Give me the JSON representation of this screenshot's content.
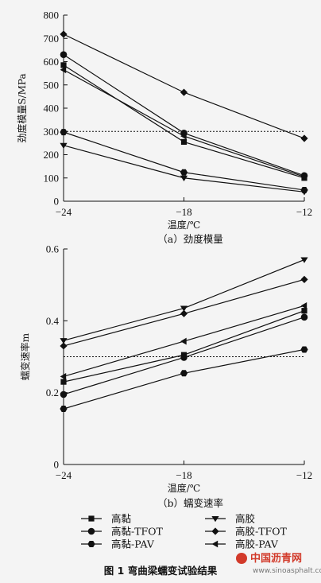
{
  "figure_title": "图 1    弯曲梁蠕变试验结果",
  "watermark": {
    "brand": "中国沥青网",
    "url": "www.sinoasphalt.com"
  },
  "legend": [
    {
      "label": "高黏",
      "marker": "square"
    },
    {
      "label": "高胶",
      "marker": "triangle-down"
    },
    {
      "label": "高黏-TFOT",
      "marker": "circle"
    },
    {
      "label": "高胶-TFOT",
      "marker": "diamond"
    },
    {
      "label": "高黏-PAV",
      "marker": "hexagon"
    },
    {
      "label": "高胶-PAV",
      "marker": "triangle-left"
    }
  ],
  "chart_data": [
    {
      "type": "line",
      "caption": "（a）劲度模量",
      "xlabel": "温度/℃",
      "ylabel": "劲度模量S/MPa",
      "x": [
        -24,
        -18,
        -12
      ],
      "x_ticks": [
        "−24",
        "−18",
        "−12"
      ],
      "xlim": [
        -24,
        -12
      ],
      "ylim": [
        0,
        800
      ],
      "y_ticks": [
        0,
        100,
        200,
        300,
        400,
        500,
        600,
        700,
        800
      ],
      "reference_line": 300,
      "series": [
        {
          "name": "高黏",
          "marker": "square",
          "values": [
            585,
            255,
            100
          ]
        },
        {
          "name": "高胶",
          "marker": "triangle-down",
          "values": [
            240,
            100,
            40
          ]
        },
        {
          "name": "高黏-TFOT",
          "marker": "circle",
          "values": [
            630,
            293,
            110
          ]
        },
        {
          "name": "高胶-TFOT",
          "marker": "diamond",
          "values": [
            718,
            468,
            270
          ]
        },
        {
          "name": "高黏-PAV",
          "marker": "hexagon",
          "values": [
            297,
            124,
            48
          ]
        },
        {
          "name": "高胶-PAV",
          "marker": "triangle-left",
          "values": [
            565,
            280,
            105
          ]
        }
      ]
    },
    {
      "type": "line",
      "caption": "（b）蠕变速率",
      "xlabel": "温度/℃",
      "ylabel": "蠕变速率m",
      "x": [
        -24,
        -18,
        -12
      ],
      "x_ticks": [
        "−24",
        "−18",
        "−12"
      ],
      "xlim": [
        -24,
        -12
      ],
      "ylim": [
        0,
        0.6
      ],
      "y_ticks": [
        "0",
        "0.2",
        "0.4",
        "0.6"
      ],
      "reference_line": 0.3,
      "series": [
        {
          "name": "高黏",
          "marker": "square",
          "values": [
            0.23,
            0.305,
            0.428
          ]
        },
        {
          "name": "高胶",
          "marker": "triangle-down",
          "values": [
            0.345,
            0.435,
            0.57
          ]
        },
        {
          "name": "高黏-TFOT",
          "marker": "circle",
          "values": [
            0.195,
            0.298,
            0.41
          ]
        },
        {
          "name": "高胶-TFOT",
          "marker": "diamond",
          "values": [
            0.33,
            0.42,
            0.515
          ]
        },
        {
          "name": "高黏-PAV",
          "marker": "hexagon",
          "values": [
            0.155,
            0.254,
            0.32
          ]
        },
        {
          "name": "高胶-PAV",
          "marker": "triangle-left",
          "values": [
            0.245,
            0.343,
            0.442
          ]
        }
      ]
    }
  ]
}
